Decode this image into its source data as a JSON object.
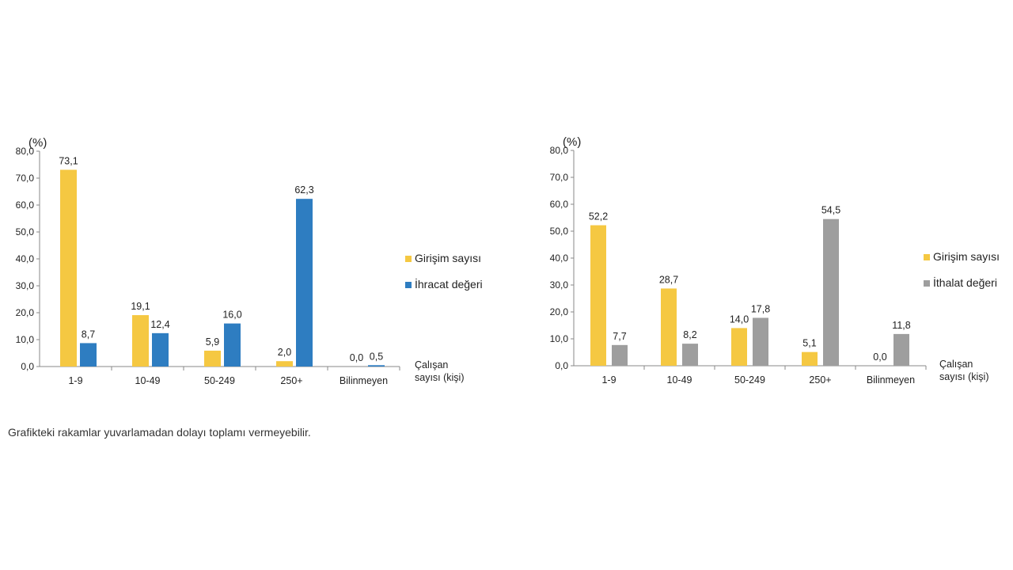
{
  "note": "Grafikteki rakamlar yuvarlamadan dolayı toplamı vermeyebilir.",
  "chart_data": [
    {
      "type": "bar",
      "ylabel": "(%)",
      "xlabel_lines": [
        "Çalışan",
        "sayısı (kişi)"
      ],
      "categories": [
        "1-9",
        "10-49",
        "50-249",
        "250+",
        "Bilinmeyen"
      ],
      "ylim": [
        0,
        80
      ],
      "yticks": [
        "0,0",
        "10,0",
        "20,0",
        "30,0",
        "40,0",
        "50,0",
        "60,0",
        "70,0",
        "80,0"
      ],
      "grid": false,
      "legend_position": "right",
      "series": [
        {
          "name": "Girişim sayısı",
          "color": "#F5C842",
          "values": [
            73.1,
            19.1,
            5.9,
            2.0,
            0.0
          ],
          "labels": [
            "73,1",
            "19,1",
            "5,9",
            "2,0",
            "0,0"
          ]
        },
        {
          "name": "İhracat değeri",
          "color": "#2E7DC1",
          "values": [
            8.7,
            12.4,
            16.0,
            62.3,
            0.5
          ],
          "labels": [
            "8,7",
            "12,4",
            "16,0",
            "62,3",
            "0,5"
          ]
        }
      ]
    },
    {
      "type": "bar",
      "ylabel": "(%)",
      "xlabel_lines": [
        "Çalışan",
        "sayısı (kişi)"
      ],
      "categories": [
        "1-9",
        "10-49",
        "50-249",
        "250+",
        "Bilinmeyen"
      ],
      "ylim": [
        0,
        80
      ],
      "yticks": [
        "0,0",
        "10,0",
        "20,0",
        "30,0",
        "40,0",
        "50,0",
        "60,0",
        "70,0",
        "80,0"
      ],
      "grid": false,
      "legend_position": "right",
      "series": [
        {
          "name": "Girişim sayısı",
          "color": "#F5C842",
          "values": [
            52.2,
            28.7,
            14.0,
            5.1,
            0.0
          ],
          "labels": [
            "52,2",
            "28,7",
            "14,0",
            "5,1",
            "0,0"
          ]
        },
        {
          "name": "İthalat değeri",
          "color": "#9E9E9E",
          "values": [
            7.7,
            8.2,
            17.8,
            54.5,
            11.8
          ],
          "labels": [
            "7,7",
            "8,2",
            "17,8",
            "54,5",
            "11,8"
          ]
        }
      ]
    }
  ]
}
